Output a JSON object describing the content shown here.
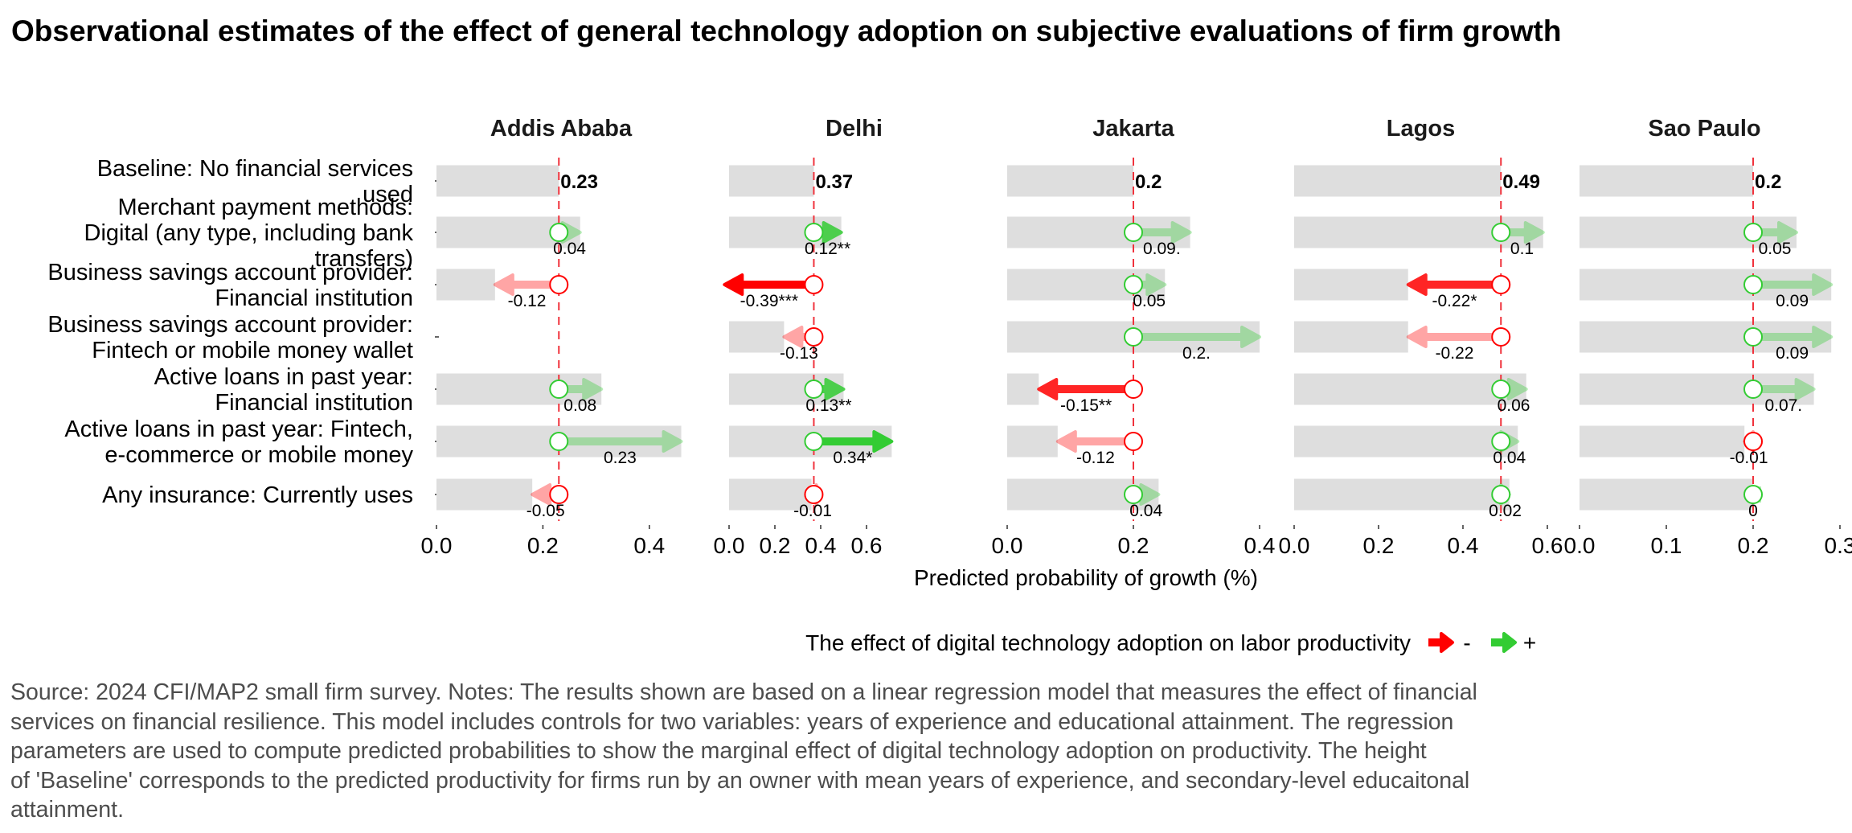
{
  "title": "Observational estimates of the effect of general technology adoption on subjective evaluations of firm growth",
  "chart_data": {
    "type": "bar",
    "subtype": "faceted horizontal bar with effect arrows",
    "xlabel": "Predicted probability of growth (%)",
    "ylabel": "",
    "grid": false,
    "legend": {
      "title": "The effect of digital technology adoption on labor productivity",
      "position": "bottom",
      "entries": [
        {
          "label": "-",
          "color": "#ff0000"
        },
        {
          "label": "+",
          "color": "#33cc33"
        }
      ]
    },
    "categories": [
      "Baseline: No financial services used",
      "Merchant payment methods: Digital (any type, including bank transfers)",
      "Business savings account provider: Financial institution",
      "Business savings account provider: Fintech or mobile money wallet",
      "Active loans in past year: Financial institution",
      "Active loans in past year: Fintech, e-commerce or mobile money",
      "Any insurance: Currently uses"
    ],
    "category_label_lines": [
      [
        "Baseline: No financial services",
        "used"
      ],
      [
        "Merchant payment methods:",
        "Digital (any type, including bank",
        "transfers)"
      ],
      [
        "Business savings account provider:",
        "Financial institution"
      ],
      [
        "Business savings account provider:",
        "Fintech or mobile money wallet"
      ],
      [
        "Active loans in past year:",
        "Financial institution"
      ],
      [
        "Active loans in past year: Fintech,",
        "e-commerce or mobile money"
      ],
      [
        "Any insurance: Currently uses"
      ]
    ],
    "panels": [
      {
        "name": "Addis Ababa",
        "xlim": [
          0,
          0.47
        ],
        "ticks": [
          0.0,
          0.2,
          0.4
        ],
        "tick_labels": [
          "0.0",
          "0.2",
          "0.4"
        ],
        "baseline": 0.23,
        "baseline_label": "0.23",
        "effects": [
          {
            "value": 0.04,
            "label": "0.04",
            "significant": false
          },
          {
            "value": -0.12,
            "label": "-0.12",
            "significant": false
          },
          null,
          {
            "value": 0.08,
            "label": "0.08",
            "significant": false
          },
          {
            "value": 0.23,
            "label": "0.23",
            "significant": false
          },
          {
            "value": -0.05,
            "label": "-0.05",
            "significant": false
          }
        ]
      },
      {
        "name": "Delhi",
        "xlim": [
          0,
          0.74
        ],
        "ticks": [
          0.0,
          0.2,
          0.4,
          0.6
        ],
        "tick_labels": [
          "0.0",
          "0.2",
          "0.4",
          "0.6"
        ],
        "baseline": 0.37,
        "baseline_label": "0.37",
        "effects": [
          {
            "value": 0.12,
            "label": "0.12**",
            "significant": true
          },
          {
            "value": -0.39,
            "label": "-0.39***",
            "significant": true
          },
          {
            "value": -0.13,
            "label": "-0.13",
            "significant": false
          },
          {
            "value": 0.13,
            "label": "0.13**",
            "significant": true
          },
          {
            "value": 0.34,
            "label": "0.34*",
            "significant": true
          },
          {
            "value": -0.01,
            "label": "-0.01",
            "significant": false
          }
        ]
      },
      {
        "name": "Jakarta",
        "xlim": [
          0,
          0.41
        ],
        "ticks": [
          0.0,
          0.2,
          0.4
        ],
        "tick_labels": [
          "0.0",
          "0.2",
          "0.4"
        ],
        "baseline": 0.2,
        "baseline_label": "0.2",
        "effects": [
          {
            "value": 0.09,
            "label": "0.09.",
            "significant": false
          },
          {
            "value": 0.05,
            "label": "0.05",
            "significant": false
          },
          {
            "value": 0.2,
            "label": "0.2.",
            "significant": false
          },
          {
            "value": -0.15,
            "label": "-0.15**",
            "significant": true
          },
          {
            "value": -0.12,
            "label": "-0.12",
            "significant": false
          },
          {
            "value": 0.04,
            "label": "0.04",
            "significant": false
          }
        ]
      },
      {
        "name": "Lagos",
        "xlim": [
          0,
          0.6
        ],
        "ticks": [
          0.0,
          0.2,
          0.4,
          0.6
        ],
        "tick_labels": [
          "0.0",
          "0.2",
          "0.4",
          "0.6"
        ],
        "baseline": 0.49,
        "baseline_label": "0.49",
        "effects": [
          {
            "value": 0.1,
            "label": "0.1",
            "significant": false
          },
          {
            "value": -0.22,
            "label": "-0.22*",
            "significant": true
          },
          {
            "value": -0.22,
            "label": "-0.22",
            "significant": false
          },
          {
            "value": 0.06,
            "label": "0.06",
            "significant": false
          },
          {
            "value": 0.04,
            "label": "0.04",
            "significant": false
          },
          {
            "value": 0.02,
            "label": "0.02",
            "significant": false
          }
        ]
      },
      {
        "name": "Sao Paulo",
        "xlim": [
          0,
          0.3
        ],
        "ticks": [
          0.0,
          0.1,
          0.2,
          0.3
        ],
        "tick_labels": [
          "0.0",
          "0.1",
          "0.2",
          "0.3"
        ],
        "baseline": 0.2,
        "baseline_label": "0.2",
        "effects": [
          {
            "value": 0.05,
            "label": "0.05",
            "significant": false
          },
          {
            "value": 0.09,
            "label": "0.09",
            "significant": false
          },
          {
            "value": 0.09,
            "label": "0.09",
            "significant": false
          },
          {
            "value": 0.07,
            "label": "0.07.",
            "significant": false
          },
          {
            "value": -0.01,
            "label": "-0.01",
            "significant": false
          },
          {
            "value": 0.0,
            "label": "0",
            "significant": false
          }
        ]
      }
    ]
  },
  "caption_lines": [
    "Source: 2024 CFI/MAP2 small firm survey. Notes: The results shown are based on a linear regression model that measures the effect of financial",
    "services on financial resilience. This model includes controls for two variables: years of experience and educational attainment. The regression",
    "parameters are used to compute predicted probabilities to show the marginal effect of digital technology adoption on productivity. The height",
    "of 'Baseline' corresponds to the predicted productivity for firms run by an owner with mean years of experience, and secondary-level educaitonal",
    "attainment."
  ]
}
